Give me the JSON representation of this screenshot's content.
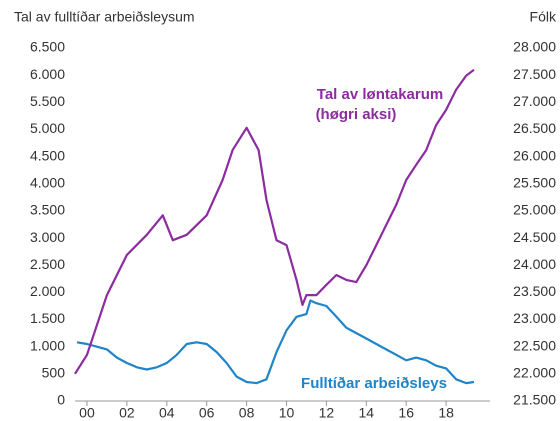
{
  "chart_data": {
    "type": "line",
    "y_label": "Tal av fulltíðar arbeiðsleysum",
    "y2_label": "Fólk",
    "annotations": [
      "Tal av løntakarum",
      "(høgri aksi)",
      "Fulltíðar arbeiðsleys"
    ],
    "xlim": [
      1999.4,
      2020.2
    ],
    "xticks": [
      {
        "value": 2000,
        "label": "00"
      },
      {
        "value": 2002,
        "label": "02"
      },
      {
        "value": 2004,
        "label": "04"
      },
      {
        "value": 2006,
        "label": "06"
      },
      {
        "value": 2008,
        "label": "08"
      },
      {
        "value": 2010,
        "label": "10"
      },
      {
        "value": 2012,
        "label": "12"
      },
      {
        "value": 2014,
        "label": "14"
      },
      {
        "value": 2016,
        "label": "16"
      },
      {
        "value": 2018,
        "label": "18"
      }
    ],
    "ylim": [
      0,
      6500
    ],
    "yticks": [
      0,
      500,
      {
        "value": 1000,
        "label": "1.000"
      },
      {
        "value": 1500,
        "label": "1.500"
      },
      {
        "value": 2000,
        "label": "2.000"
      },
      {
        "value": 2500,
        "label": "2.500"
      },
      {
        "value": 3000,
        "label": "3.000"
      },
      {
        "value": 3500,
        "label": "3.500"
      },
      {
        "value": 4000,
        "label": "4.000"
      },
      {
        "value": 4500,
        "label": "4.500"
      },
      {
        "value": 5000,
        "label": "5.000"
      },
      {
        "value": 5500,
        "label": "5.500"
      },
      {
        "value": 6000,
        "label": "6.000"
      },
      {
        "value": 6500,
        "label": "6.500"
      }
    ],
    "y2lim": [
      21500,
      28000
    ],
    "y2ticks": [
      {
        "value": 21500,
        "label": "21.500"
      },
      {
        "value": 22000,
        "label": "22.000"
      },
      {
        "value": 22500,
        "label": "22.500"
      },
      {
        "value": 23000,
        "label": "23.000"
      },
      {
        "value": 23500,
        "label": "23.500"
      },
      {
        "value": 24000,
        "label": "24.000"
      },
      {
        "value": 24500,
        "label": "24.500"
      },
      {
        "value": 25000,
        "label": "25.000"
      },
      {
        "value": 25500,
        "label": "25.500"
      },
      {
        "value": 26000,
        "label": "26.000"
      },
      {
        "value": 26500,
        "label": "26.500"
      },
      {
        "value": 27000,
        "label": "27.000"
      },
      {
        "value": 27500,
        "label": "27.500"
      },
      {
        "value": 28000,
        "label": "28.000"
      }
    ],
    "series": [
      {
        "name": "Fulltíðar arbeiðsleys",
        "color": "#1f84c8",
        "axis": "y",
        "x": [
          1999.5,
          2000,
          2000.5,
          2001,
          2001.5,
          2002,
          2002.5,
          2003,
          2003.5,
          2004,
          2004.5,
          2005,
          2005.5,
          2006,
          2006.5,
          2007,
          2007.5,
          2008,
          2008.5,
          2009,
          2009.5,
          2010,
          2010.5,
          2011,
          2011.2,
          2011.5,
          2012,
          2012.5,
          2013,
          2013.5,
          2014,
          2014.5,
          2015,
          2015.5,
          2016,
          2016.5,
          2017,
          2017.5,
          2018,
          2018.5,
          2019,
          2019.4
        ],
        "values": [
          1080,
          1050,
          1000,
          950,
          800,
          700,
          620,
          580,
          620,
          700,
          850,
          1050,
          1080,
          1050,
          900,
          700,
          450,
          350,
          330,
          400,
          900,
          1300,
          1550,
          1600,
          1850,
          1800,
          1750,
          1550,
          1350,
          1250,
          1150,
          1050,
          950,
          850,
          750,
          800,
          750,
          650,
          600,
          400,
          330,
          350
        ]
      },
      {
        "name": "Tal av løntakarum",
        "color": "#8b2d9e",
        "axis": "y2",
        "x": [
          1999.4,
          2000,
          2001,
          2002,
          2003,
          2003.8,
          2004.3,
          2005,
          2006,
          2006.8,
          2007.3,
          2008,
          2008.6,
          2009,
          2009.5,
          2010,
          2010.5,
          2010.8,
          2011,
          2011.5,
          2012,
          2012.5,
          2013,
          2013.5,
          2014,
          2014.5,
          2015,
          2015.5,
          2016,
          2016.5,
          2017,
          2017.5,
          2018,
          2018.5,
          2019,
          2019.4
        ],
        "values": [
          22000,
          22350,
          23450,
          24190,
          24560,
          24920,
          24460,
          24560,
          24920,
          25570,
          26120,
          26530,
          26120,
          25200,
          24460,
          24370,
          23730,
          23270,
          23450,
          23450,
          23640,
          23820,
          23730,
          23690,
          24000,
          24370,
          24740,
          25110,
          25570,
          25850,
          26120,
          26580,
          26860,
          27230,
          27490,
          27600
        ]
      }
    ]
  }
}
